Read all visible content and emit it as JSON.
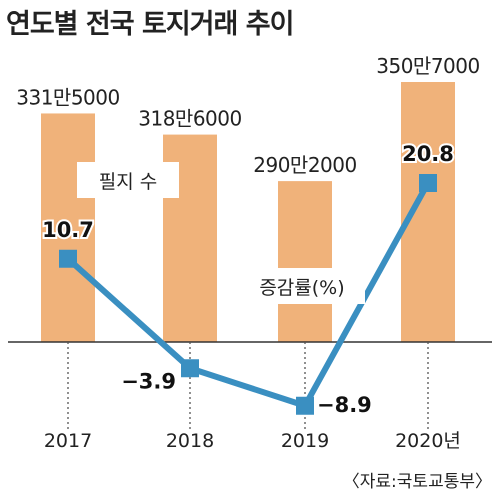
{
  "title": "연도별 전국 토지거래 추이",
  "source": "〈자료:국토교통부〉",
  "chart_data": {
    "type": "bar",
    "categories": [
      "2017",
      "2018",
      "2019",
      "2020년"
    ],
    "series": [
      {
        "name": "필지 수",
        "type": "bar",
        "values": [
          3315000,
          3186000,
          2902000,
          3507000
        ],
        "labels": [
          "331만5000",
          "318만6000",
          "290만2000",
          "350만7000"
        ],
        "color": "#f0b27a"
      },
      {
        "name": "증감률(%)",
        "type": "line",
        "values": [
          10.7,
          -3.9,
          -8.9,
          20.8
        ],
        "labels": [
          "10.7",
          "−3.9",
          "−8.9",
          "20.8"
        ],
        "color": "#3a8fc1"
      }
    ],
    "title": "연도별 전국 토지거래 추이",
    "grid": false,
    "legend": "inline"
  }
}
